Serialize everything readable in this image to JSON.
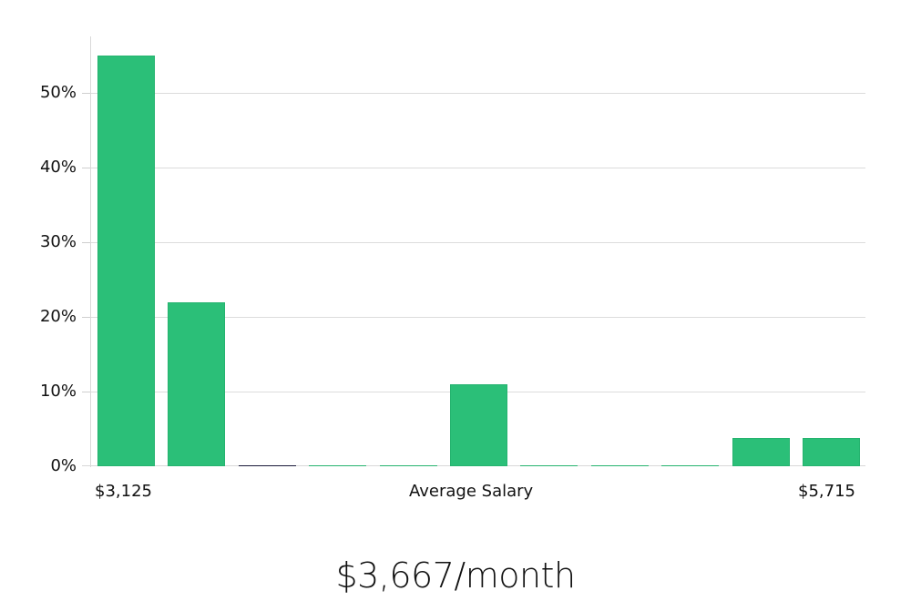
{
  "chart_data": {
    "type": "bar",
    "title": "",
    "xlabel": "Average Salary",
    "ylabel": "",
    "ylim": [
      0,
      57
    ],
    "yticks": [
      "0%",
      "10%",
      "20%",
      "30%",
      "40%",
      "50%"
    ],
    "grid": true,
    "x_range_labels": {
      "min": "$3,125",
      "max": "$5,715"
    },
    "categories": [
      "bin1",
      "bin2",
      "bin3",
      "bin4",
      "bin5",
      "bin6",
      "bin7",
      "bin8",
      "bin9",
      "bin10",
      "bin11"
    ],
    "values": [
      55,
      22,
      0,
      0,
      0,
      11,
      0,
      0,
      0,
      3.8,
      3.8
    ],
    "units": "%",
    "bar_color": "#2bbf78"
  },
  "axis": {
    "y_labels": [
      "0%",
      "10%",
      "20%",
      "30%",
      "40%",
      "50%"
    ],
    "x_min_label": "$3,125",
    "x_center_label": "Average Salary",
    "x_max_label": "$5,715"
  },
  "summary": {
    "value": "$3,667/month"
  }
}
